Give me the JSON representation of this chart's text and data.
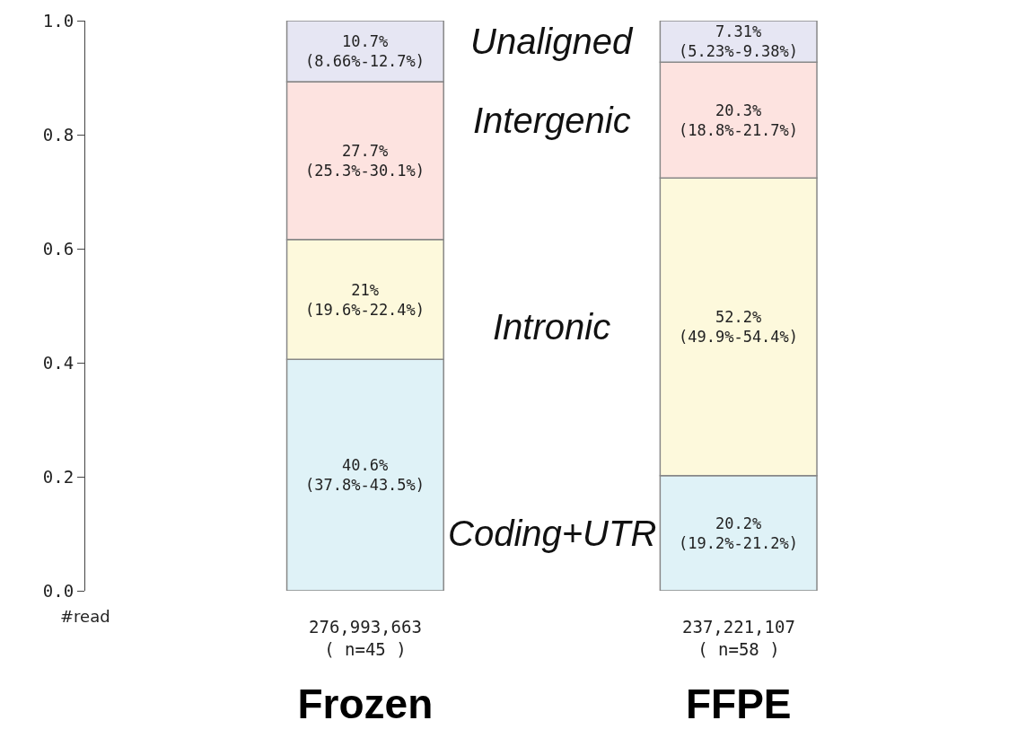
{
  "chart_data": {
    "type": "bar",
    "stacked": true,
    "categories": [
      "Frozen",
      "FFPE"
    ],
    "series": [
      {
        "name": "Coding+UTR",
        "color": "#dff2f7",
        "values": [
          0.406,
          0.202
        ],
        "value_labels": [
          "40.6%\n(37.8%-43.5%)",
          "20.2%\n(19.2%-21.2%)"
        ]
      },
      {
        "name": "Intronic",
        "color": "#fdf9dc",
        "values": [
          0.21,
          0.522
        ],
        "value_labels": [
          "21%\n(19.6%-22.4%)",
          "52.2%\n(49.9%-54.4%)"
        ]
      },
      {
        "name": "Intergenic",
        "color": "#fde3e0",
        "values": [
          0.277,
          0.203
        ],
        "value_labels": [
          "27.7%\n(25.3%-30.1%)",
          "20.3%\n(18.8%-21.7%)"
        ]
      },
      {
        "name": "Unaligned",
        "color": "#e6e6f3",
        "values": [
          0.107,
          0.0731
        ],
        "value_labels": [
          "10.7%\n(8.66%-12.7%)",
          "7.31%\n(5.23%-9.38%)"
        ]
      }
    ],
    "ylim": [
      0,
      1
    ],
    "yticks": [
      {
        "value": 0,
        "label": "0.0"
      },
      {
        "value": 0.2,
        "label": "0.2"
      },
      {
        "value": 0.4,
        "label": "0.4"
      },
      {
        "value": 0.6,
        "label": "0.6"
      },
      {
        "value": 0.8,
        "label": "0.8"
      },
      {
        "value": 1,
        "label": "1.0"
      }
    ],
    "annotations": [
      "#read",
      "276,993,663\n( n=45 )",
      "237,221,107\n( n=58 )"
    ],
    "legend": false
  }
}
